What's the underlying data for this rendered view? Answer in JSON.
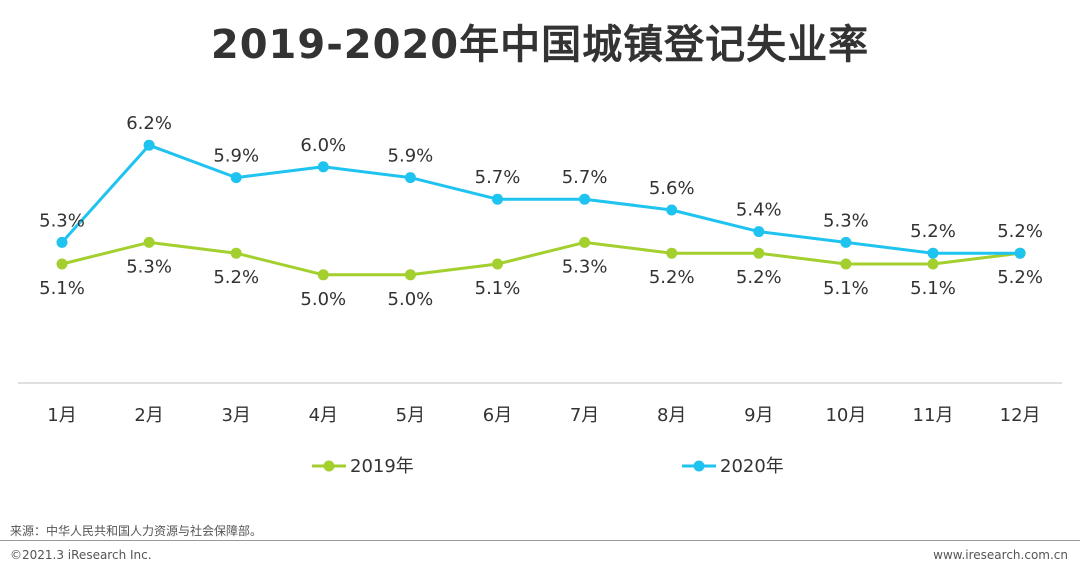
{
  "chart_data": {
    "type": "line",
    "title": "2019-2020年中国城镇登记失业率",
    "categories": [
      "1月",
      "2月",
      "3月",
      "4月",
      "5月",
      "6月",
      "7月",
      "8月",
      "9月",
      "10月",
      "11月",
      "12月"
    ],
    "series": [
      {
        "name": "2019年",
        "color": "#a3cf2f",
        "values": [
          5.1,
          5.3,
          5.2,
          5.0,
          5.0,
          5.1,
          5.3,
          5.2,
          5.2,
          5.1,
          5.1,
          5.2
        ],
        "labels": [
          "5.1%",
          "5.3%",
          "5.2%",
          "5.0%",
          "5.0%",
          "5.1%",
          "5.3%",
          "5.2%",
          "5.2%",
          "5.1%",
          "5.1%",
          "5.2%"
        ]
      },
      {
        "name": "2020年",
        "color": "#1fc3ef",
        "values": [
          5.3,
          6.2,
          5.9,
          6.0,
          5.9,
          5.7,
          5.7,
          5.6,
          5.4,
          5.3,
          5.2,
          5.2
        ],
        "labels": [
          "5.3%",
          "6.2%",
          "5.9%",
          "6.0%",
          "5.9%",
          "5.7%",
          "5.7%",
          "5.6%",
          "5.4%",
          "5.3%",
          "5.2%",
          "5.2%"
        ]
      }
    ],
    "xlabel": "",
    "ylabel": "",
    "ylim": [
      4.8,
      6.4
    ],
    "grid": false,
    "legend": "bottom-center"
  },
  "footer": {
    "source": "来源：中华人民共和国人力资源与社会保障部。",
    "copyright": "©2021.3 iResearch Inc.",
    "website": "www.iresearch.com.cn"
  },
  "colors": {
    "axis": "#bfbfbf",
    "text": "#333333"
  }
}
